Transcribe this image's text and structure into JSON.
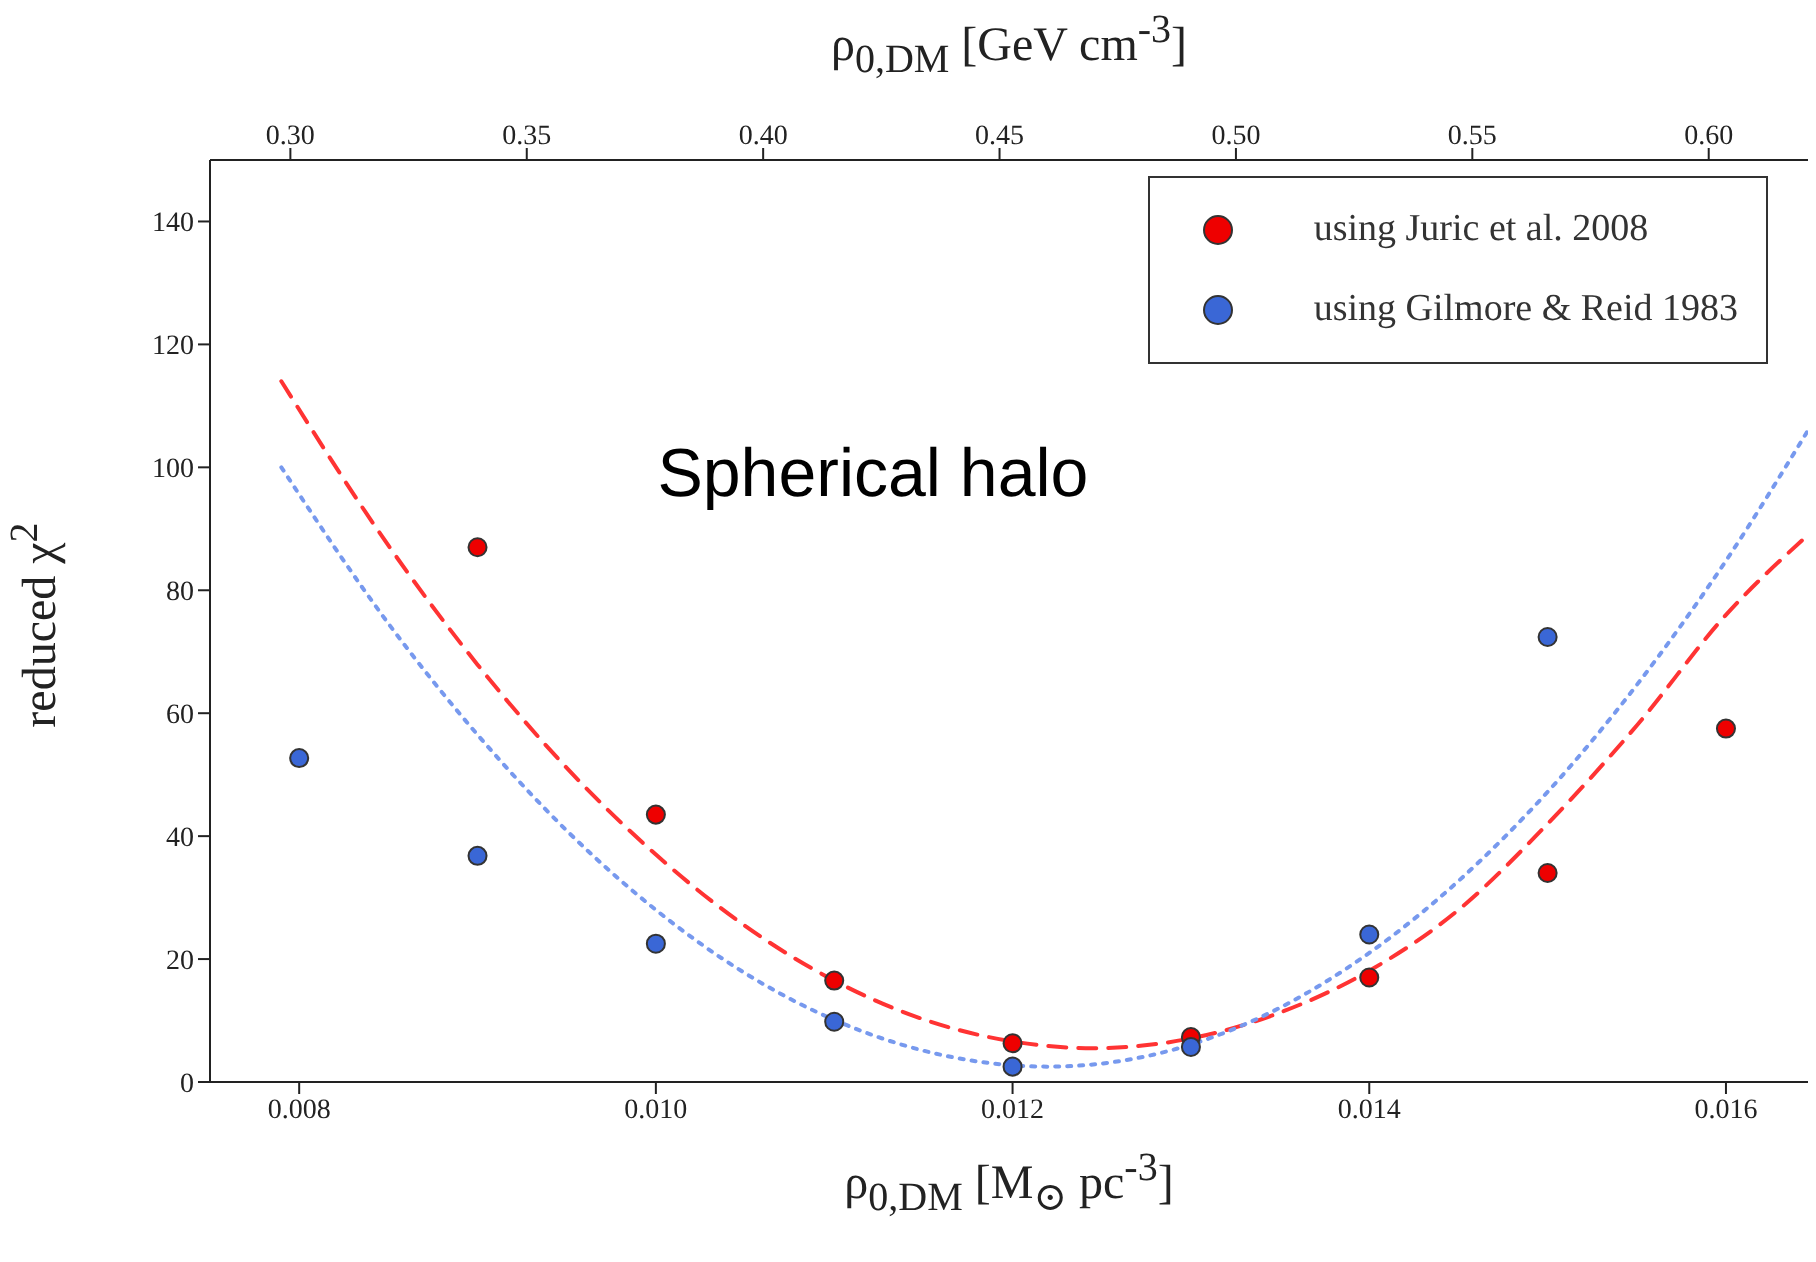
{
  "chart_data": {
    "type": "scatter",
    "xlabel": "ρ$_{0,DM}$ [M$_{⊙}$ pc$^{-3}$]",
    "x2label": "ρ$_{0,DM}$ [GeV cm$^{-3}$]",
    "ylabel": "reduced χ$^{2}$",
    "annotations": [
      "Spherical halo"
    ],
    "xlim": [
      0.0075,
      0.01646
    ],
    "xticks": [
      {
        "value": 0.008,
        "label": "0.008"
      },
      {
        "value": 0.01,
        "label": "0.010"
      },
      {
        "value": 0.012,
        "label": "0.012"
      },
      {
        "value": 0.014,
        "label": "0.014"
      },
      {
        "value": 0.016,
        "label": "0.016"
      }
    ],
    "x2lim": [
      0.283,
      0.621
    ],
    "x2ticks": [
      {
        "value": 0.3,
        "label": "0.30"
      },
      0.35,
      {
        "value": 0.4,
        "label": "0.40"
      },
      0.45,
      {
        "value": 0.5,
        "label": "0.50"
      },
      0.55,
      {
        "value": 0.6,
        "label": "0.60"
      }
    ],
    "ylim": [
      0,
      150
    ],
    "yticks": [
      0,
      20,
      40,
      60,
      80,
      100,
      120,
      140
    ],
    "grid": false,
    "legend": "top right",
    "marker": "circle",
    "series": [
      {
        "name": "using Juric et al. 2008",
        "type": "scatter",
        "color": "#ee0000",
        "x": [
          0.009,
          0.01,
          0.011,
          0.012,
          0.013,
          0.014,
          0.015,
          0.016
        ],
        "values": [
          87,
          43.5,
          16.5,
          6.3,
          7.3,
          17,
          34,
          57.5
        ]
      },
      {
        "name": "using Gilmore & Reid 1983",
        "type": "scatter",
        "color": "#3a67d6",
        "x": [
          0.008,
          0.009,
          0.01,
          0.011,
          0.012,
          0.013,
          0.014,
          0.015
        ],
        "values": [
          52.7,
          36.8,
          22.5,
          9.8,
          2.5,
          5.7,
          24,
          72.4
        ]
      },
      {
        "type": "line",
        "color": "#ff3333",
        "line_style": "dashed",
        "marker": "none",
        "x": [
          0.0079,
          0.0085,
          0.009,
          0.0095,
          0.01,
          0.0105,
          0.011,
          0.0115,
          0.012,
          0.01245,
          0.013,
          0.0135,
          0.014,
          0.0145,
          0.015,
          0.0155,
          0.016,
          0.01646
        ],
        "values": [
          114,
          87.3,
          67.9,
          51.1,
          37,
          25.4,
          16.5,
          10.2,
          6.6,
          5.5,
          7.1,
          11.3,
          18.1,
          28,
          42,
          58,
          76,
          89
        ]
      },
      {
        "type": "line",
        "color": "#7799ee",
        "line_style": "dotted",
        "marker": "none",
        "x": [
          0.0079,
          0.0085,
          0.009,
          0.0095,
          0.01,
          0.0105,
          0.011,
          0.0115,
          0.0122,
          0.0125,
          0.013,
          0.0135,
          0.014,
          0.0145,
          0.015,
          0.0155,
          0.016,
          0.01646
        ],
        "values": [
          100,
          74.6,
          56.5,
          40.9,
          28,
          17.7,
          10.1,
          5.1,
          2.5,
          3,
          6.1,
          12.1,
          21,
          32.7,
          47.2,
          64.6,
          84.8,
          106
        ]
      }
    ]
  }
}
